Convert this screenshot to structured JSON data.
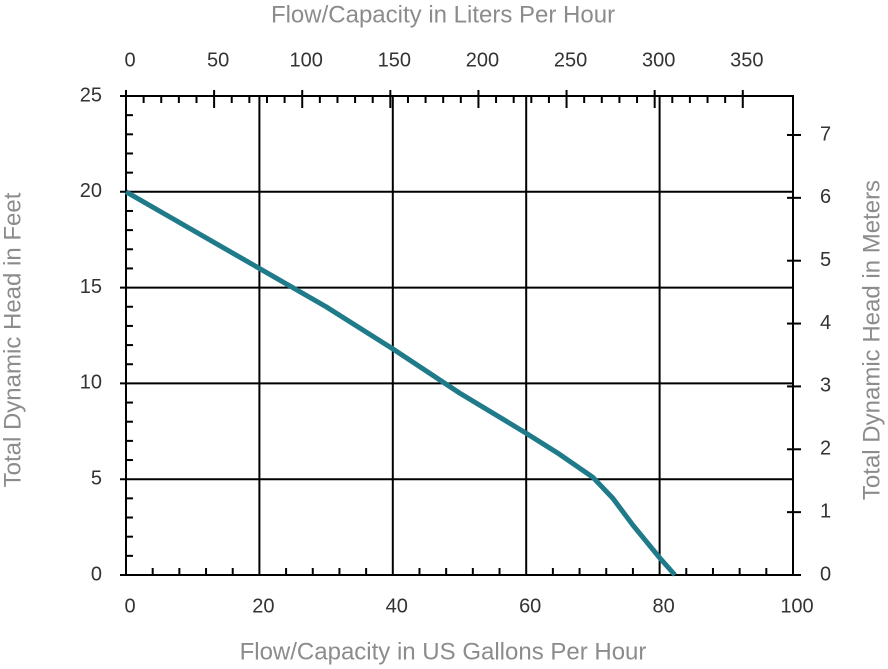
{
  "chart_data": {
    "type": "line",
    "x_label": "Flow/Capacity in US Gallons Per Hour",
    "x2_label": "Flow/Capacity in Liters Per Hour",
    "y_label": "Total Dynamic Head in Feet",
    "y2_label": "Total Dynamic Head in Meters",
    "x": [
      0,
      10,
      20,
      30,
      40,
      50,
      60,
      65,
      70,
      73,
      76,
      80,
      82.3
    ],
    "series": [
      {
        "color": "#1f7b89",
        "values": [
          20,
          18,
          16,
          14,
          11.8,
          9.5,
          7.4,
          6.3,
          5.1,
          4,
          2.6,
          0.9,
          0
        ]
      }
    ],
    "xlim": [
      0,
      100
    ],
    "xticks": [
      0,
      20,
      40,
      60,
      80,
      100
    ],
    "ylim": [
      0,
      25
    ],
    "yticks": [
      0,
      5,
      10,
      15,
      20,
      25
    ],
    "x2lim": [
      0,
      378.5
    ],
    "x2ticks": [
      0,
      50,
      100,
      150,
      200,
      250,
      300,
      350
    ],
    "y2lim": [
      0,
      7.62
    ],
    "y2ticks": [
      0,
      1,
      2,
      3,
      4,
      5,
      6,
      7
    ],
    "grid": true
  }
}
